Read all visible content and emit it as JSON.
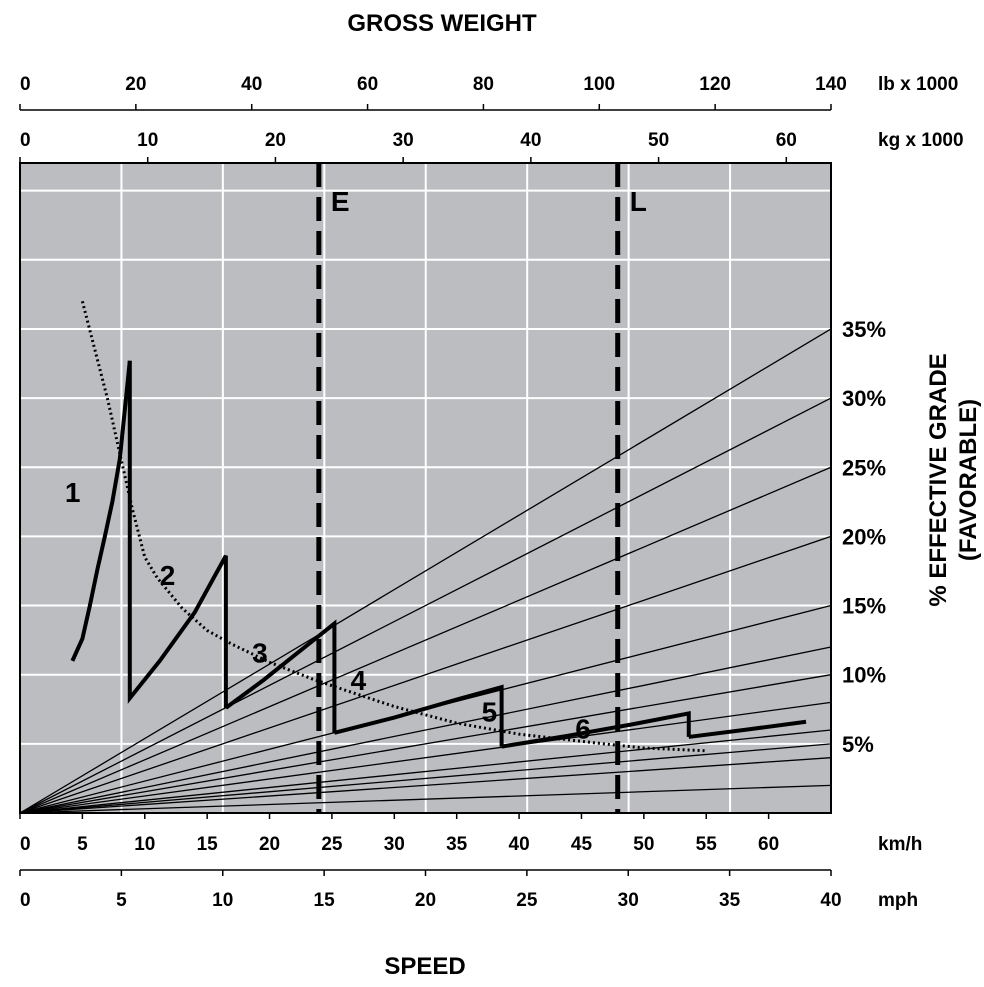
{
  "chart_data": {
    "type": "line",
    "top_title": "GROSS WEIGHT",
    "bottom_title": "SPEED",
    "right_axis_label_line1": "% EFFECTIVE GRADE",
    "right_axis_label_line2": "(FAVORABLE)",
    "grid": true,
    "weight_axes": [
      {
        "unit": "lb x 1000",
        "range": [
          0,
          140
        ],
        "ticks": [
          "0",
          "20",
          "40",
          "60",
          "80",
          "100",
          "120",
          "140"
        ]
      },
      {
        "unit": "kg x 1000",
        "range": [
          0,
          63.5
        ],
        "ticks": [
          "0",
          "10",
          "20",
          "30",
          "40",
          "50",
          "60"
        ]
      }
    ],
    "speed_axes": [
      {
        "unit": "km/h",
        "range": [
          0,
          65
        ],
        "ticks": [
          "0",
          "5",
          "10",
          "15",
          "20",
          "25",
          "30",
          "35",
          "40",
          "45",
          "50",
          "55",
          "60"
        ]
      },
      {
        "unit": "mph",
        "range": [
          0,
          40
        ],
        "ticks": [
          "0",
          "5",
          "10",
          "15",
          "20",
          "25",
          "30",
          "35",
          "40"
        ]
      }
    ],
    "y_axis": {
      "label": "% EFFECTIVE GRADE (FAVORABLE)",
      "range": [
        0,
        47
      ]
    },
    "grade_lines": [
      {
        "label": "5%",
        "grade": 5
      },
      {
        "label": "10%",
        "grade": 10
      },
      {
        "label": "15%",
        "grade": 15
      },
      {
        "label": "20%",
        "grade": 20
      },
      {
        "label": "25%",
        "grade": 25
      },
      {
        "label": "30%",
        "grade": 30
      },
      {
        "label": "35%",
        "grade": 35
      }
    ],
    "unlabeled_grade_lines": [
      2,
      4,
      6,
      8,
      12
    ],
    "weight_markers": [
      {
        "label": "E",
        "weight_kg_x1000": 23.4
      },
      {
        "label": "L",
        "weight_kg_x1000": 46.8
      }
    ],
    "gear_curves": [
      {
        "name": "1",
        "points": [
          [
            4.2,
            11.0
          ],
          [
            5.0,
            12.6
          ],
          [
            5.6,
            15.0
          ],
          [
            6.2,
            17.6
          ],
          [
            6.8,
            20.0
          ],
          [
            7.4,
            22.5
          ],
          [
            8.0,
            25.6
          ],
          [
            8.8,
            32.7
          ]
        ]
      },
      {
        "name": "2",
        "points": [
          [
            8.8,
            32.7
          ],
          [
            8.8,
            8.3
          ],
          [
            11.2,
            11.0
          ],
          [
            14.0,
            14.5
          ],
          [
            16.5,
            18.6
          ],
          [
            16.5,
            7.6
          ]
        ]
      },
      {
        "name": "3",
        "points": [
          [
            16.5,
            7.6
          ],
          [
            19.5,
            9.6
          ],
          [
            22.0,
            11.4
          ],
          [
            25.2,
            13.7
          ],
          [
            25.2,
            5.8
          ]
        ]
      },
      {
        "name": "4",
        "points": [
          [
            25.2,
            5.8
          ],
          [
            30.0,
            6.9
          ],
          [
            35.0,
            8.2
          ],
          [
            38.6,
            9.1
          ],
          [
            38.6,
            4.8
          ]
        ]
      },
      {
        "name": "5",
        "points": [
          [
            38.6,
            4.8
          ],
          [
            44.0,
            5.6
          ],
          [
            49.0,
            6.4
          ],
          [
            53.6,
            7.2
          ],
          [
            53.6,
            5.5
          ]
        ]
      },
      {
        "name": "6",
        "points": [
          [
            53.6,
            5.5
          ],
          [
            58.0,
            6.0
          ],
          [
            63.0,
            6.6
          ]
        ]
      }
    ],
    "dotted_curve": {
      "points": [
        [
          5,
          37
        ],
        [
          6,
          33.5
        ],
        [
          7,
          30
        ],
        [
          8,
          26
        ],
        [
          9,
          22
        ],
        [
          10,
          18.5
        ],
        [
          11,
          17
        ],
        [
          13,
          14.8
        ],
        [
          15,
          13.2
        ],
        [
          17,
          12.2
        ],
        [
          20,
          10.9
        ],
        [
          23.4,
          9.7
        ],
        [
          26,
          8.9
        ],
        [
          30,
          7.7
        ],
        [
          35,
          6.5
        ],
        [
          40,
          5.7
        ],
        [
          46.8,
          5.0
        ],
        [
          50,
          4.7
        ],
        [
          55,
          4.5
        ]
      ]
    }
  }
}
